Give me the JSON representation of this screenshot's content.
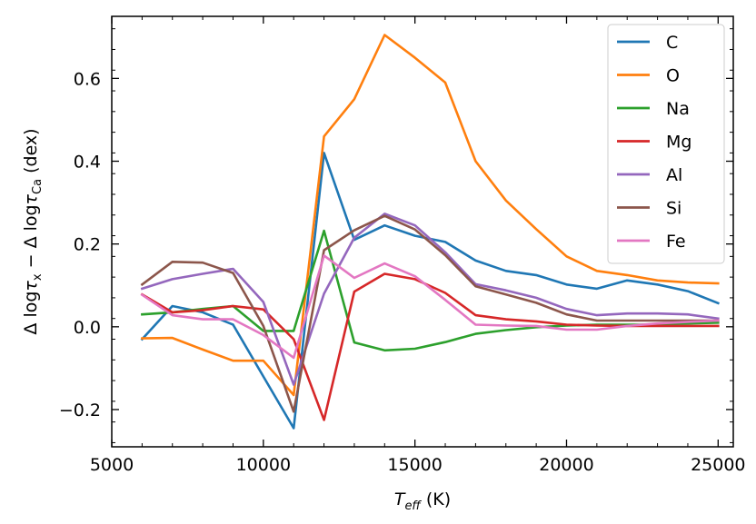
{
  "chart_data": {
    "type": "line",
    "xlabel": "T_eff (K)",
    "ylabel": "Δ logτx − Δ logτCa (dex)",
    "xlim": [
      5000,
      25500
    ],
    "ylim": [
      -0.29,
      0.75
    ],
    "xticks": [
      5000,
      10000,
      15000,
      20000,
      25000
    ],
    "xtick_labels": [
      "5000",
      "10000",
      "15000",
      "20000",
      "25000"
    ],
    "yticks": [
      -0.2,
      0.0,
      0.2,
      0.4,
      0.6
    ],
    "ytick_labels": [
      "−0.2",
      "0.0",
      "0.2",
      "0.4",
      "0.6"
    ],
    "legend_position": "top-right",
    "x": [
      6000,
      7000,
      8000,
      9000,
      10000,
      11000,
      12000,
      13000,
      14000,
      15000,
      16000,
      17000,
      18000,
      19000,
      20000,
      21000,
      22000,
      23000,
      24000,
      25000
    ],
    "series": [
      {
        "name": "C",
        "color": "#1f77b4",
        "values": [
          -0.03,
          0.05,
          0.035,
          0.005,
          -0.12,
          -0.245,
          0.42,
          0.21,
          0.245,
          0.22,
          0.205,
          0.16,
          0.135,
          0.125,
          0.102,
          0.092,
          0.112,
          0.102,
          0.086,
          0.057
        ]
      },
      {
        "name": "O",
        "color": "#ff7f0e",
        "values": [
          -0.028,
          -0.027,
          -0.055,
          -0.082,
          -0.082,
          -0.165,
          0.46,
          0.55,
          0.705,
          0.65,
          0.59,
          0.4,
          0.305,
          0.236,
          0.17,
          0.135,
          0.125,
          0.112,
          0.107,
          0.105
        ]
      },
      {
        "name": "Na",
        "color": "#2ca02c",
        "values": [
          0.03,
          0.035,
          0.043,
          0.05,
          -0.01,
          -0.01,
          0.232,
          -0.038,
          -0.057,
          -0.053,
          -0.037,
          -0.017,
          -0.008,
          -0.001,
          0.003,
          0.005,
          0.005,
          0.005,
          0.008,
          0.01
        ]
      },
      {
        "name": "Mg",
        "color": "#d62728",
        "values": [
          0.078,
          0.035,
          0.04,
          0.05,
          0.042,
          -0.03,
          -0.225,
          0.085,
          0.128,
          0.115,
          0.082,
          0.028,
          0.018,
          0.013,
          0.005,
          0.003,
          0.002,
          0.002,
          0.002,
          0.002
        ]
      },
      {
        "name": "Al",
        "color": "#9467bd",
        "values": [
          0.092,
          0.115,
          0.128,
          0.14,
          0.06,
          -0.14,
          0.08,
          0.215,
          0.273,
          0.245,
          0.18,
          0.103,
          0.088,
          0.07,
          0.043,
          0.028,
          0.032,
          0.032,
          0.03,
          0.02
        ]
      },
      {
        "name": "Si",
        "color": "#8c564b",
        "values": [
          0.102,
          0.157,
          0.155,
          0.13,
          0.002,
          -0.205,
          0.185,
          0.233,
          0.268,
          0.235,
          0.173,
          0.098,
          0.078,
          0.058,
          0.03,
          0.015,
          0.015,
          0.015,
          0.015,
          0.015
        ]
      },
      {
        "name": "Fe",
        "color": "#e377c2",
        "values": [
          0.077,
          0.028,
          0.018,
          0.018,
          -0.02,
          -0.075,
          0.172,
          0.118,
          0.153,
          0.122,
          0.065,
          0.005,
          0.003,
          0.002,
          -0.007,
          -0.007,
          0.002,
          0.008,
          0.012,
          0.015
        ]
      }
    ]
  }
}
